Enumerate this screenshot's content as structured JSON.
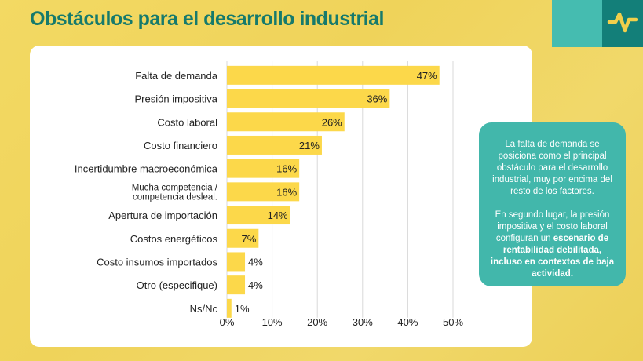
{
  "title": "Obstáculos para el desarrollo industrial",
  "logo_icon": "pulse-icon",
  "colors": {
    "bar": "#fcd84a",
    "accent": "#42b7ab",
    "accent_dark": "#137f79",
    "title": "#167a6c"
  },
  "note": {
    "p1": "La falta de demanda se posiciona como el principal obstáculo para el desarrollo industrial, muy por encima del resto de los factores.",
    "p2_plain": "En segundo lugar, la presión impositiva y el costo laboral configuran un ",
    "p2_bold": "escenario de rentabilidad debilitada, incluso en contextos de baja actividad."
  },
  "chart_data": {
    "type": "bar",
    "orientation": "horizontal",
    "categories": [
      "Falta de demanda",
      "Presión impositiva",
      "Costo laboral",
      "Costo financiero",
      "Incertidumbre macroeconómica",
      "Mucha competencia / competencia desleal.",
      "Apertura de importación",
      "Costos energéticos",
      "Costo insumos importados",
      "Otro (especifique)",
      "Ns/Nc"
    ],
    "values": [
      47,
      36,
      26,
      21,
      16,
      16,
      14,
      7,
      4,
      4,
      1
    ],
    "data_labels": [
      "47%",
      "36%",
      "26%",
      "21%",
      "16%",
      "16%",
      "14%",
      "7%",
      "4%",
      "4%",
      "1%"
    ],
    "xlim": [
      0,
      50
    ],
    "xticks": [
      "0%",
      "10%",
      "20%",
      "30%",
      "40%",
      "50%"
    ],
    "grid": true
  }
}
